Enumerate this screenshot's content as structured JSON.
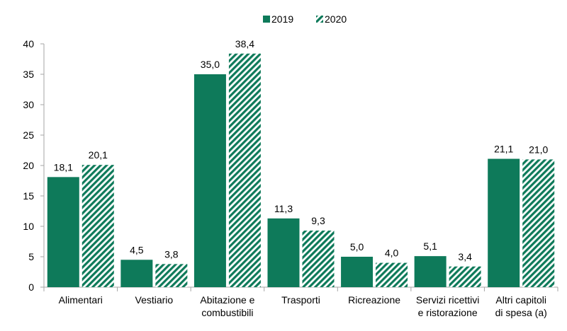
{
  "chart_data": {
    "type": "bar",
    "categories": [
      [
        "Alimentari"
      ],
      [
        "Vestiario"
      ],
      [
        "Abitazione e",
        "combustibili"
      ],
      [
        "Trasporti"
      ],
      [
        "Ricreazione"
      ],
      [
        "Servizi ricettivi",
        "e ristorazione"
      ],
      [
        "Altri capitoli",
        "di spesa (a)"
      ]
    ],
    "series": [
      {
        "name": "2019",
        "values": [
          18.1,
          4.5,
          35.0,
          11.3,
          5.0,
          5.1,
          21.1
        ],
        "labels": [
          "18,1",
          "4,5",
          "35,0",
          "11,3",
          "5,0",
          "5,1",
          "21,1"
        ],
        "style": "solid"
      },
      {
        "name": "2020",
        "values": [
          20.1,
          3.8,
          38.4,
          9.3,
          4.0,
          3.4,
          21.0
        ],
        "labels": [
          "20,1",
          "3,8",
          "38,4",
          "9,3",
          "4,0",
          "3,4",
          "21,0"
        ],
        "style": "hatched"
      }
    ],
    "ylim": [
      0,
      40
    ],
    "yticks": [
      0,
      5,
      10,
      15,
      20,
      25,
      30,
      35,
      40
    ],
    "grid": false,
    "legend_position": "top-center",
    "colors": {
      "bar": "#0e7a5a",
      "axis": "#a6a6a6",
      "text": "#000000"
    }
  }
}
